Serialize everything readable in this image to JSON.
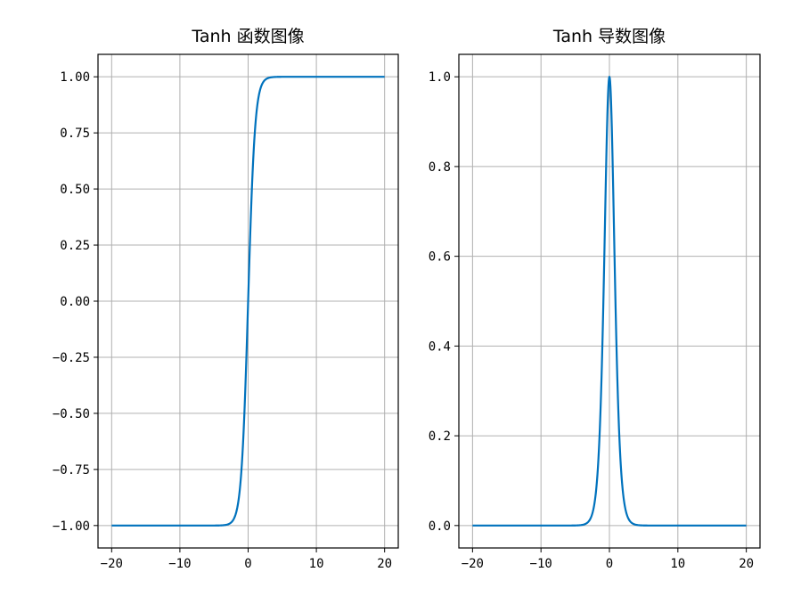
{
  "chart_data": [
    {
      "type": "line",
      "title": "Tanh 函数图像",
      "xlabel": "",
      "ylabel": "",
      "function": "tanh(x)",
      "x_range": [
        -20,
        20
      ],
      "xlim": [
        -22,
        22
      ],
      "ylim": [
        -1.1,
        1.1
      ],
      "xticks": [
        -20,
        -10,
        0,
        10,
        20
      ],
      "xtick_labels": [
        "−20",
        "−10",
        "0",
        "10",
        "20"
      ],
      "yticks": [
        1.0,
        0.75,
        0.5,
        0.25,
        0.0,
        -0.25,
        -0.5,
        -0.75,
        -1.0
      ],
      "ytick_labels": [
        "1.00",
        "0.75",
        "0.50",
        "0.25",
        "0.00",
        "−0.25",
        "−0.50",
        "−0.75",
        "−1.00"
      ],
      "grid": true,
      "color": "#0072BD",
      "series": [
        {
          "x": [
            -20,
            -10,
            -5,
            -4,
            -3,
            -2,
            -1.5,
            -1,
            -0.5,
            0,
            0.5,
            1,
            1.5,
            2,
            3,
            4,
            5,
            10,
            20
          ],
          "y": [
            -1.0,
            -1.0,
            -0.9999,
            -0.9993,
            -0.9951,
            -0.964,
            -0.9051,
            -0.7616,
            -0.4621,
            0.0,
            0.4621,
            0.7616,
            0.9051,
            0.964,
            0.9951,
            0.9993,
            0.9999,
            1.0,
            1.0
          ]
        }
      ]
    },
    {
      "type": "line",
      "title": "Tanh 导数图像",
      "xlabel": "",
      "ylabel": "",
      "function": "1 - tanh(x)^2",
      "x_range": [
        -20,
        20
      ],
      "xlim": [
        -22,
        22
      ],
      "ylim": [
        -0.05,
        1.05
      ],
      "xticks": [
        -20,
        -10,
        0,
        10,
        20
      ],
      "xtick_labels": [
        "−20",
        "−10",
        "0",
        "10",
        "20"
      ],
      "yticks": [
        1.0,
        0.8,
        0.6,
        0.4,
        0.2,
        0.0
      ],
      "ytick_labels": [
        "1.0",
        "0.8",
        "0.6",
        "0.4",
        "0.2",
        "0.0"
      ],
      "grid": true,
      "color": "#0072BD",
      "series": [
        {
          "x": [
            -20,
            -10,
            -5,
            -4,
            -3,
            -2,
            -1.5,
            -1,
            -0.5,
            0,
            0.5,
            1,
            1.5,
            2,
            3,
            4,
            5,
            10,
            20
          ],
          "y": [
            0.0,
            0.0,
            0.0002,
            0.0013,
            0.0099,
            0.0707,
            0.1807,
            0.42,
            0.7864,
            1.0,
            0.7864,
            0.42,
            0.1807,
            0.0707,
            0.0099,
            0.0013,
            0.0002,
            0.0,
            0.0
          ]
        }
      ]
    }
  ]
}
